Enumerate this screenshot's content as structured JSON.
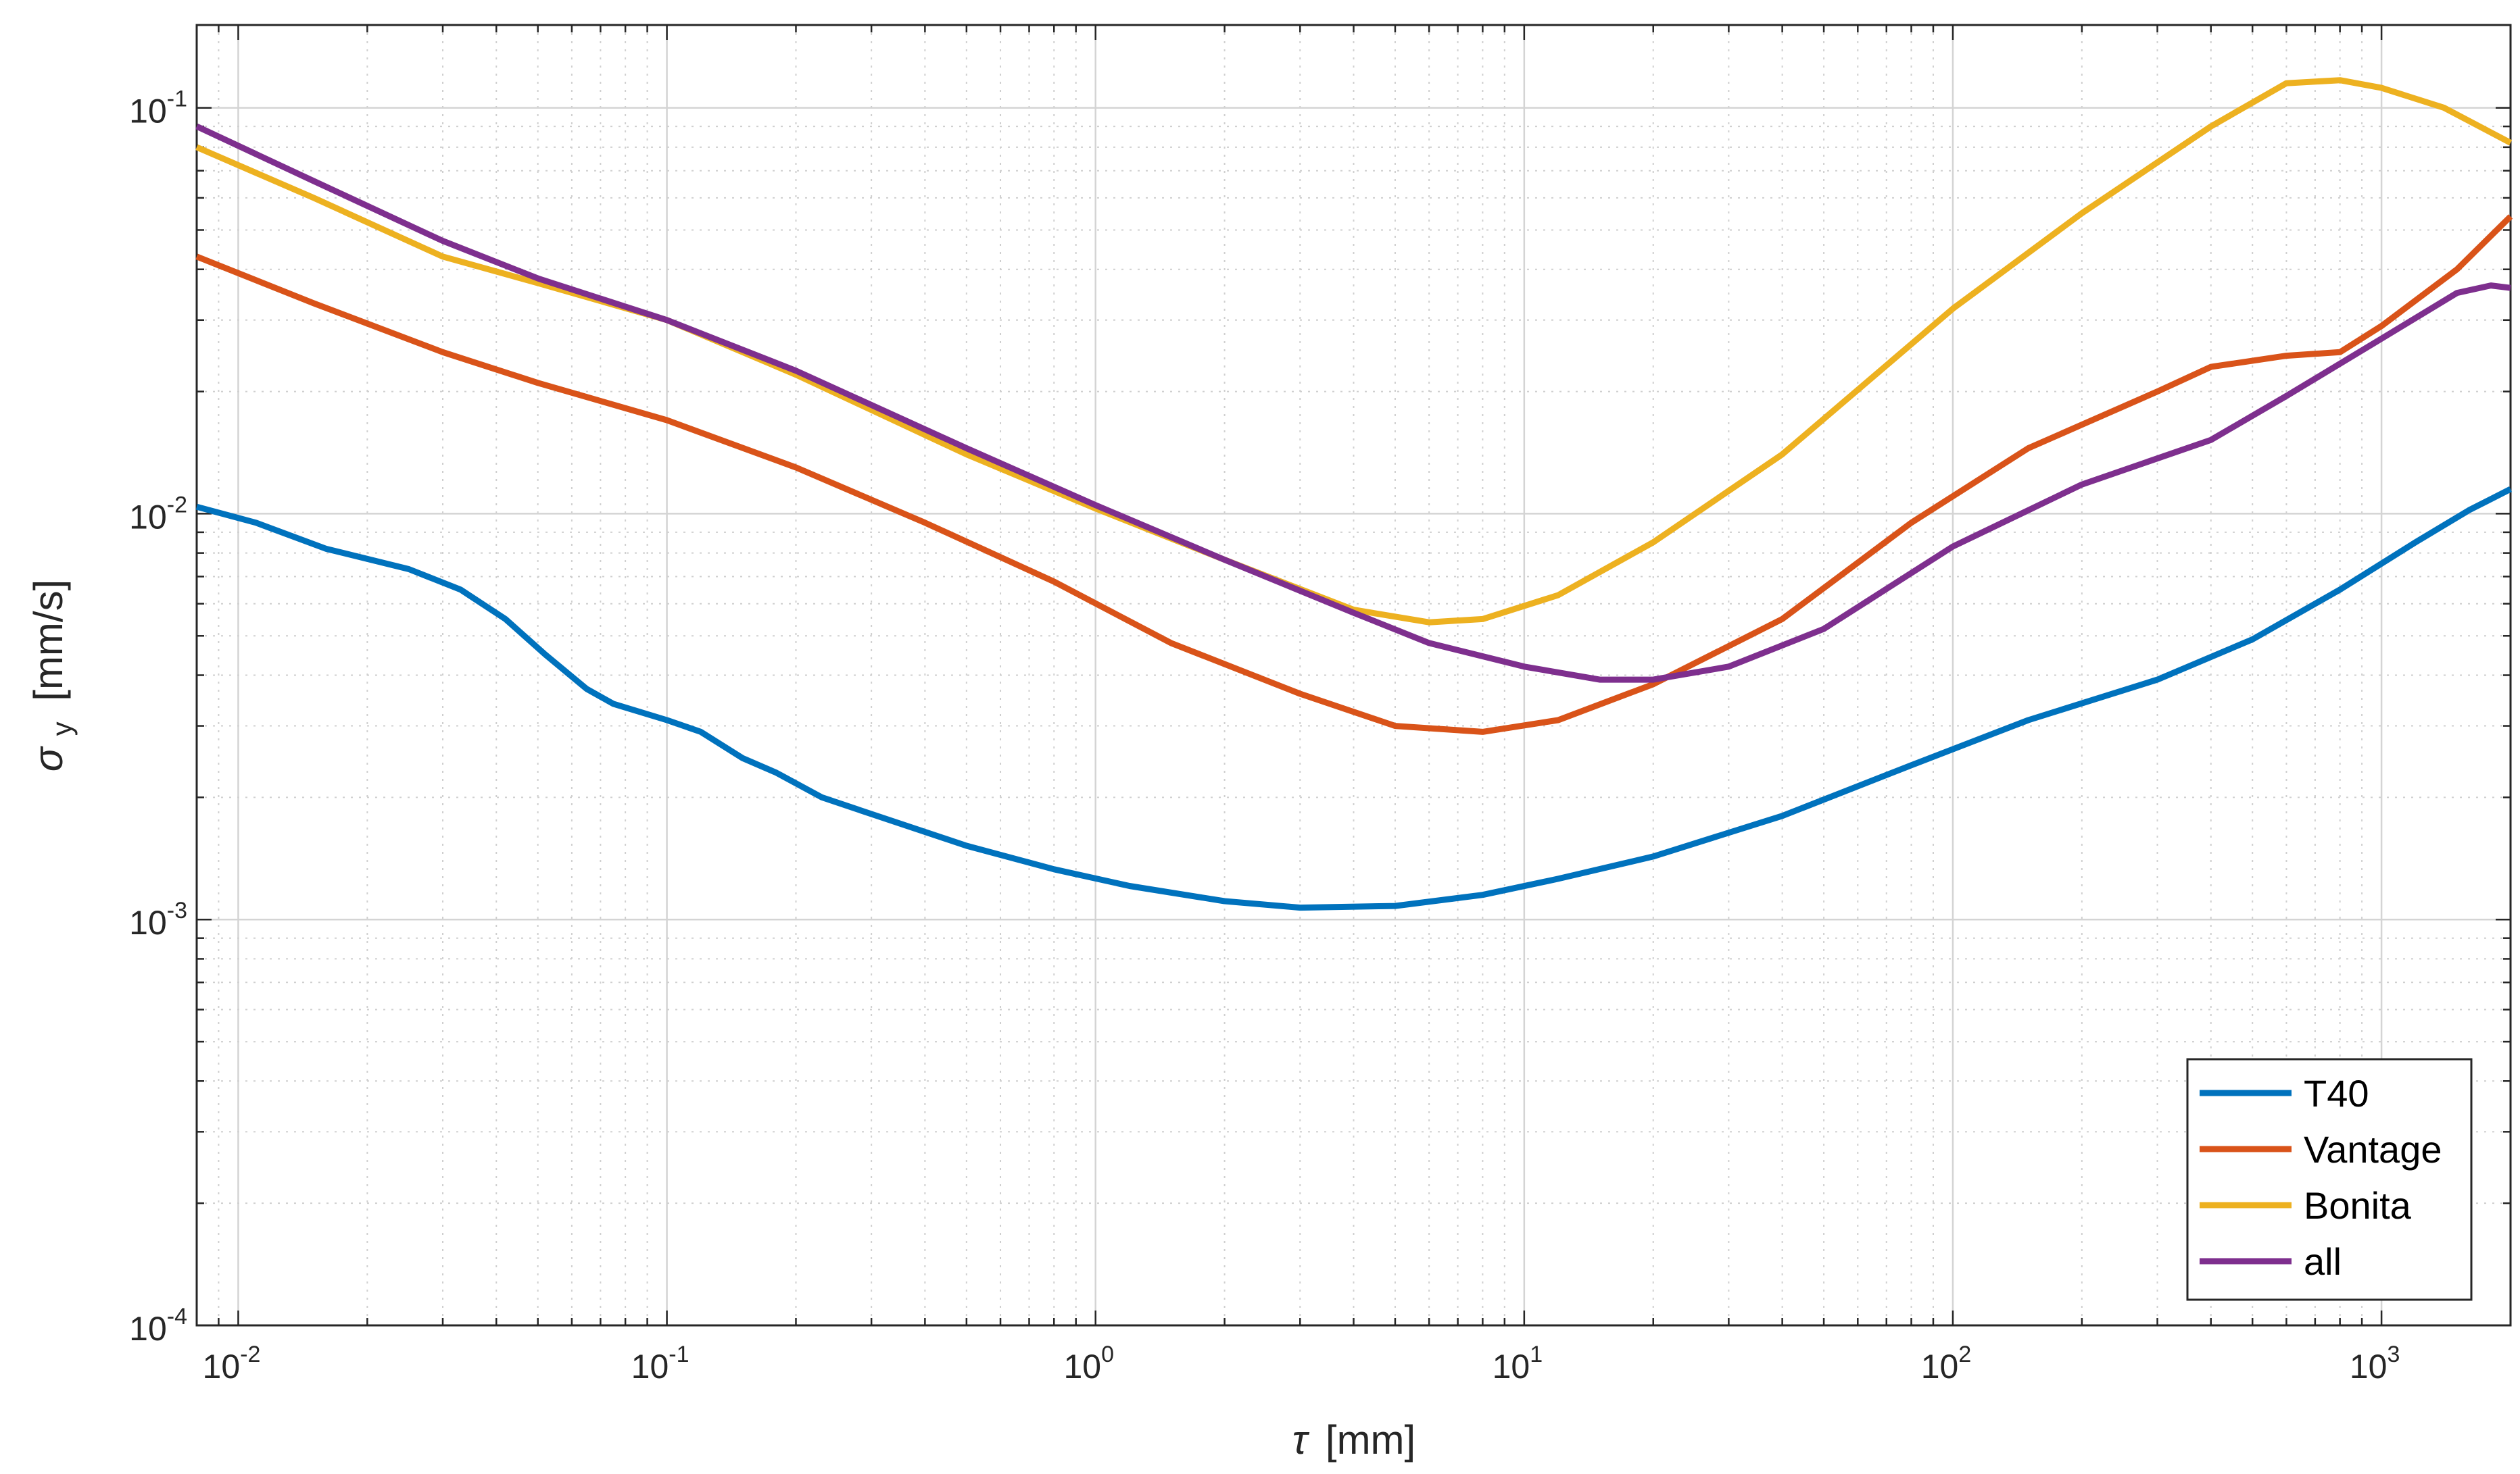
{
  "chart_data": {
    "type": "line",
    "xlabel": {
      "symbol": "τ",
      "unit": "[mm]"
    },
    "ylabel": {
      "symbol": "σ",
      "subscript": "y",
      "unit": "[mm/s]"
    },
    "xscale": "log",
    "yscale": "log",
    "xlim": [
      0.008,
      2000
    ],
    "ylim": [
      0.0001,
      0.16
    ],
    "xticks": [
      {
        "base": "10",
        "exp": "-2",
        "value": 0.01
      },
      {
        "base": "10",
        "exp": "-1",
        "value": 0.1
      },
      {
        "base": "10",
        "exp": "0",
        "value": 1
      },
      {
        "base": "10",
        "exp": "1",
        "value": 10
      },
      {
        "base": "10",
        "exp": "2",
        "value": 100
      },
      {
        "base": "10",
        "exp": "3",
        "value": 1000
      }
    ],
    "yticks": [
      {
        "base": "10",
        "exp": "-4",
        "value": 0.0001
      },
      {
        "base": "10",
        "exp": "-3",
        "value": 0.001
      },
      {
        "base": "10",
        "exp": "-2",
        "value": 0.01
      },
      {
        "base": "10",
        "exp": "-1",
        "value": 0.1
      }
    ],
    "grid": true,
    "minor_grid": true,
    "legend_position": "bottom-right",
    "series": [
      {
        "name": "T40",
        "color": "#0072BD",
        "points": [
          [
            0.008,
            0.0104
          ],
          [
            0.011,
            0.0095
          ],
          [
            0.016,
            0.0082
          ],
          [
            0.025,
            0.0073
          ],
          [
            0.033,
            0.0065
          ],
          [
            0.042,
            0.0055
          ],
          [
            0.052,
            0.0045
          ],
          [
            0.065,
            0.0037
          ],
          [
            0.075,
            0.0034
          ],
          [
            0.1,
            0.0031
          ],
          [
            0.12,
            0.0029
          ],
          [
            0.15,
            0.0025
          ],
          [
            0.18,
            0.0023
          ],
          [
            0.23,
            0.002
          ],
          [
            0.3,
            0.00182
          ],
          [
            0.5,
            0.00152
          ],
          [
            0.8,
            0.00133
          ],
          [
            1.2,
            0.00121
          ],
          [
            2,
            0.00111
          ],
          [
            3,
            0.00107
          ],
          [
            5,
            0.00108
          ],
          [
            8,
            0.00115
          ],
          [
            12,
            0.00126
          ],
          [
            20,
            0.00143
          ],
          [
            40,
            0.0018
          ],
          [
            80,
            0.0024
          ],
          [
            150,
            0.0031
          ],
          [
            300,
            0.0039
          ],
          [
            500,
            0.0049
          ],
          [
            800,
            0.0065
          ],
          [
            1200,
            0.0085
          ],
          [
            1600,
            0.0102
          ],
          [
            2000,
            0.0115
          ]
        ]
      },
      {
        "name": "Vantage",
        "color": "#D95319",
        "points": [
          [
            0.008,
            0.043
          ],
          [
            0.015,
            0.033
          ],
          [
            0.03,
            0.025
          ],
          [
            0.05,
            0.021
          ],
          [
            0.1,
            0.017
          ],
          [
            0.2,
            0.013
          ],
          [
            0.4,
            0.0095
          ],
          [
            0.8,
            0.0068
          ],
          [
            1.5,
            0.0048
          ],
          [
            3,
            0.0036
          ],
          [
            5,
            0.003
          ],
          [
            8,
            0.0029
          ],
          [
            12,
            0.0031
          ],
          [
            20,
            0.0038
          ],
          [
            40,
            0.0055
          ],
          [
            80,
            0.0095
          ],
          [
            150,
            0.0145
          ],
          [
            300,
            0.02
          ],
          [
            400,
            0.023
          ],
          [
            600,
            0.0245
          ],
          [
            800,
            0.025
          ],
          [
            1000,
            0.029
          ],
          [
            1500,
            0.04
          ],
          [
            2000,
            0.054
          ]
        ]
      },
      {
        "name": "Bonita",
        "color": "#EDB120",
        "points": [
          [
            0.008,
            0.08
          ],
          [
            0.015,
            0.06
          ],
          [
            0.03,
            0.043
          ],
          [
            0.05,
            0.037
          ],
          [
            0.1,
            0.03
          ],
          [
            0.2,
            0.022
          ],
          [
            0.5,
            0.014
          ],
          [
            1,
            0.0103
          ],
          [
            2,
            0.0077
          ],
          [
            4,
            0.0058
          ],
          [
            6,
            0.0054
          ],
          [
            8,
            0.0055
          ],
          [
            12,
            0.0063
          ],
          [
            20,
            0.0085
          ],
          [
            40,
            0.014
          ],
          [
            100,
            0.032
          ],
          [
            200,
            0.055
          ],
          [
            400,
            0.09
          ],
          [
            600,
            0.115
          ],
          [
            800,
            0.117
          ],
          [
            1000,
            0.112
          ],
          [
            1400,
            0.1
          ],
          [
            2000,
            0.082
          ]
        ]
      },
      {
        "name": "all",
        "color": "#7E2F8E",
        "points": [
          [
            0.008,
            0.09
          ],
          [
            0.015,
            0.066
          ],
          [
            0.03,
            0.047
          ],
          [
            0.05,
            0.038
          ],
          [
            0.1,
            0.03
          ],
          [
            0.2,
            0.0225
          ],
          [
            0.5,
            0.0145
          ],
          [
            1,
            0.0105
          ],
          [
            2,
            0.0077
          ],
          [
            4,
            0.0057
          ],
          [
            6,
            0.0048
          ],
          [
            10,
            0.0042
          ],
          [
            15,
            0.0039
          ],
          [
            20,
            0.0039
          ],
          [
            30,
            0.0042
          ],
          [
            50,
            0.0052
          ],
          [
            100,
            0.0083
          ],
          [
            200,
            0.0118
          ],
          [
            400,
            0.0152
          ],
          [
            600,
            0.0195
          ],
          [
            1000,
            0.027
          ],
          [
            1500,
            0.035
          ],
          [
            1800,
            0.0365
          ],
          [
            2000,
            0.036
          ]
        ]
      }
    ]
  }
}
